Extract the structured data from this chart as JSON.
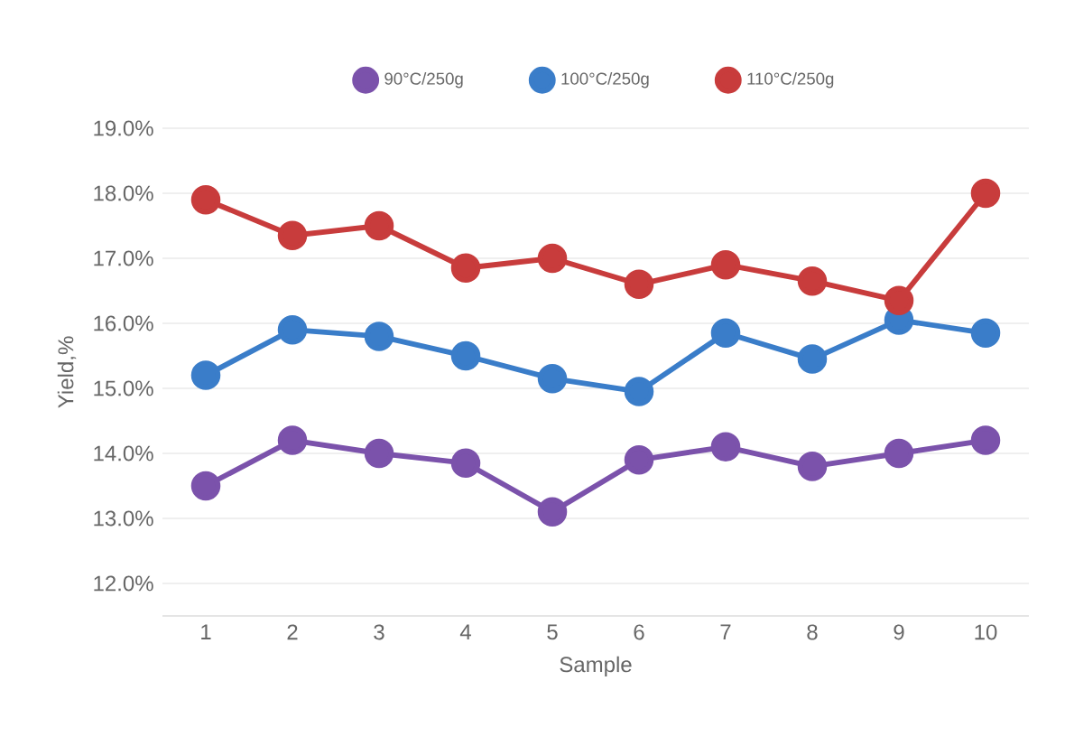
{
  "chart_data": {
    "type": "line",
    "xlabel": "Sample",
    "ylabel": "Yield,%",
    "categories": [
      "1",
      "2",
      "3",
      "4",
      "5",
      "6",
      "7",
      "8",
      "9",
      "10"
    ],
    "series": [
      {
        "name": "90°C/250g",
        "color": "#7b52ab",
        "values": [
          13.5,
          14.2,
          14.0,
          13.85,
          13.1,
          13.9,
          14.1,
          13.8,
          14.0,
          14.2
        ]
      },
      {
        "name": "100°C/250g",
        "color": "#3a7dc9",
        "values": [
          15.2,
          15.9,
          15.8,
          15.5,
          15.15,
          14.95,
          15.85,
          15.45,
          16.05,
          15.85
        ]
      },
      {
        "name": "110°C/250g",
        "color": "#c83c3c",
        "values": [
          17.9,
          17.35,
          17.5,
          16.85,
          17.0,
          16.6,
          16.9,
          16.65,
          16.35,
          18.0
        ]
      }
    ],
    "ylim": [
      11.5,
      19
    ],
    "yticks": [
      {
        "value": 12,
        "label": "12.0%"
      },
      {
        "value": 13,
        "label": "13.0%"
      },
      {
        "value": 14,
        "label": "14.0%"
      },
      {
        "value": 15,
        "label": "15.0%"
      },
      {
        "value": 16,
        "label": "16.0%"
      },
      {
        "value": 17,
        "label": "17.0%"
      },
      {
        "value": 18,
        "label": "18.0%"
      },
      {
        "value": 19,
        "label": "19.0%"
      }
    ],
    "grid": "y",
    "legend": "top",
    "marker": "circle",
    "line_style": "solid"
  }
}
